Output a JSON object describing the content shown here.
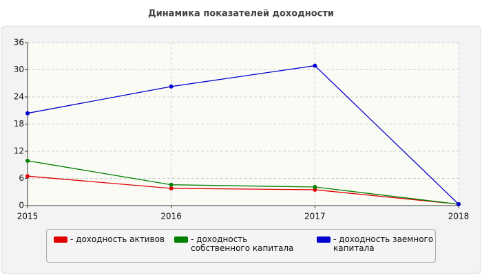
{
  "chart_data": {
    "type": "line",
    "title": "Динамика показателей доходности",
    "x": [
      2015,
      2016,
      2017,
      2018
    ],
    "xlim": [
      2015,
      2018
    ],
    "xticks": [
      2015,
      2016,
      2017,
      2018
    ],
    "ylim": [
      0,
      36
    ],
    "yticks": [
      0,
      6,
      12,
      18,
      24,
      30,
      36
    ],
    "grid": true,
    "series": [
      {
        "name": "- доходность активов",
        "color": "#e00000",
        "values": [
          6.5,
          3.8,
          3.5,
          0.3
        ]
      },
      {
        "name": "- доходность собственного капитала",
        "color": "#008000",
        "values": [
          9.9,
          4.6,
          4.1,
          0.3
        ]
      },
      {
        "name": "- доходность заемного капитала",
        "color": "#0000d0",
        "values": [
          20.4,
          26.3,
          30.9,
          0.3
        ]
      }
    ]
  }
}
